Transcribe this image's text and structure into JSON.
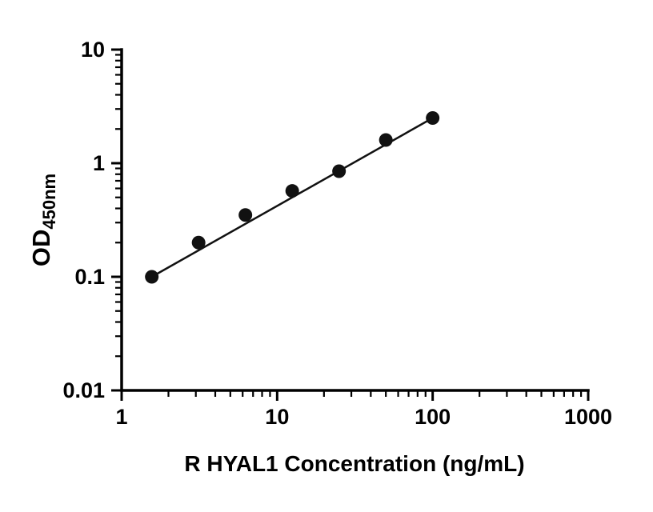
{
  "chart_data": {
    "type": "scatter",
    "title": "",
    "xlabel": "R HYAL1 Concentration (ng/mL)",
    "ylabel_main": "OD",
    "ylabel_sub": "450nm",
    "x_scale": "log",
    "y_scale": "log",
    "xlim": [
      1,
      1000
    ],
    "ylim": [
      0.01,
      10
    ],
    "x_ticks": [
      1,
      10,
      100,
      1000
    ],
    "x_tick_labels": [
      "1",
      "10",
      "100",
      "1000"
    ],
    "y_ticks": [
      0.01,
      0.1,
      1,
      10
    ],
    "y_tick_labels": [
      "0.01",
      "0.1",
      "1",
      "10"
    ],
    "grid": false,
    "legend": "none",
    "points": [
      {
        "x": 1.5625,
        "y": 0.1
      },
      {
        "x": 3.125,
        "y": 0.2
      },
      {
        "x": 6.25,
        "y": 0.35
      },
      {
        "x": 12.5,
        "y": 0.57
      },
      {
        "x": 25,
        "y": 0.85
      },
      {
        "x": 50,
        "y": 1.6
      },
      {
        "x": 100,
        "y": 2.5
      }
    ],
    "fit_line": {
      "x1": 1.5625,
      "y1": 0.1,
      "x2": 100,
      "y2": 2.5
    },
    "marker": {
      "shape": "circle",
      "color": "#111111",
      "radius": 8.5
    },
    "line_color": "#111111",
    "axis_color": "#000000"
  }
}
